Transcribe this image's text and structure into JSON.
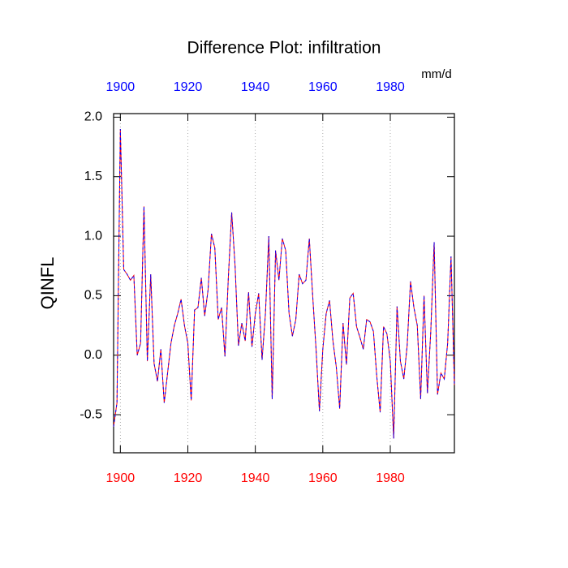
{
  "chart_data": {
    "type": "line",
    "title": "Difference Plot: infiltration",
    "units": "mm/d",
    "y_label": "QINFL",
    "x": [
      1898,
      1899,
      1900,
      1901,
      1902,
      1903,
      1904,
      1905,
      1906,
      1907,
      1908,
      1909,
      1910,
      1911,
      1912,
      1913,
      1914,
      1915,
      1916,
      1917,
      1918,
      1919,
      1920,
      1921,
      1922,
      1923,
      1924,
      1925,
      1926,
      1927,
      1928,
      1929,
      1930,
      1931,
      1932,
      1933,
      1934,
      1935,
      1936,
      1937,
      1938,
      1939,
      1940,
      1941,
      1942,
      1943,
      1944,
      1945,
      1946,
      1947,
      1948,
      1949,
      1950,
      1951,
      1952,
      1953,
      1954,
      1955,
      1956,
      1957,
      1958,
      1959,
      1960,
      1961,
      1962,
      1963,
      1964,
      1965,
      1966,
      1967,
      1968,
      1969,
      1970,
      1971,
      1972,
      1973,
      1974,
      1975,
      1976,
      1977,
      1978,
      1979,
      1980,
      1981,
      1982,
      1983,
      1984,
      1985,
      1986,
      1987,
      1988,
      1989,
      1990,
      1991,
      1992,
      1993,
      1994,
      1995,
      1996,
      1997,
      1998,
      1999
    ],
    "series": [
      {
        "color": "#ff0000",
        "values": [
          -0.6,
          -0.4,
          1.9,
          0.72,
          0.68,
          0.63,
          0.67,
          0.0,
          0.1,
          1.25,
          -0.05,
          0.68,
          -0.07,
          -0.22,
          0.05,
          -0.4,
          -0.15,
          0.1,
          0.25,
          0.35,
          0.47,
          0.25,
          0.1,
          -0.38,
          0.38,
          0.4,
          0.65,
          0.33,
          0.55,
          1.02,
          0.9,
          0.3,
          0.4,
          -0.01,
          0.65,
          1.2,
          0.75,
          0.08,
          0.27,
          0.12,
          0.53,
          0.07,
          0.35,
          0.52,
          -0.04,
          0.35,
          1.0,
          -0.37,
          0.88,
          0.63,
          0.98,
          0.88,
          0.35,
          0.16,
          0.3,
          0.68,
          0.6,
          0.63,
          0.98,
          0.5,
          0.05,
          -0.47,
          0.05,
          0.35,
          0.46,
          0.12,
          -0.1,
          -0.45,
          0.27,
          -0.08,
          0.48,
          0.52,
          0.24,
          0.15,
          0.05,
          0.3,
          0.28,
          0.2,
          -0.18,
          -0.48,
          0.24,
          0.18,
          -0.05,
          -0.7,
          0.41,
          -0.05,
          -0.2,
          0.08,
          0.62,
          0.4,
          0.25,
          -0.37,
          0.5,
          -0.32,
          0.2,
          0.95,
          -0.33,
          -0.15,
          -0.2,
          0.1,
          0.83,
          -0.25
        ]
      },
      {
        "color": "#0000ff",
        "values": [
          -0.6,
          -0.4,
          1.9,
          0.72,
          0.68,
          0.63,
          0.67,
          0.0,
          0.1,
          1.25,
          -0.05,
          0.68,
          -0.07,
          -0.22,
          0.05,
          -0.4,
          -0.15,
          0.1,
          0.25,
          0.35,
          0.47,
          0.25,
          0.1,
          -0.38,
          0.38,
          0.4,
          0.65,
          0.33,
          0.55,
          1.02,
          0.9,
          0.3,
          0.4,
          -0.01,
          0.65,
          1.2,
          0.75,
          0.08,
          0.27,
          0.12,
          0.53,
          0.07,
          0.35,
          0.52,
          -0.04,
          0.35,
          1.0,
          -0.37,
          0.88,
          0.63,
          0.98,
          0.88,
          0.35,
          0.16,
          0.3,
          0.68,
          0.6,
          0.63,
          0.98,
          0.5,
          0.05,
          -0.47,
          0.05,
          0.35,
          0.46,
          0.12,
          -0.1,
          -0.45,
          0.27,
          -0.08,
          0.48,
          0.52,
          0.24,
          0.15,
          0.05,
          0.3,
          0.28,
          0.2,
          -0.18,
          -0.48,
          0.24,
          0.18,
          -0.05,
          -0.7,
          0.41,
          -0.05,
          -0.2,
          0.08,
          0.62,
          0.4,
          0.25,
          -0.37,
          0.5,
          -0.32,
          0.2,
          0.95,
          -0.33,
          -0.15,
          -0.2,
          0.1,
          0.83,
          -0.25
        ]
      }
    ],
    "xlim": [
      1898,
      1999
    ],
    "xticks": [
      1900,
      1920,
      1940,
      1960,
      1980
    ],
    "xtick_label_colors": {
      "bottom": "#ff0000",
      "top": "#0000ff"
    },
    "ylim": [
      -0.82,
      2.03
    ],
    "yticks": [
      {
        "value": -0.5,
        "label": "-0.5"
      },
      {
        "value": 0,
        "label": "0.0"
      },
      0.5,
      {
        "value": 1,
        "label": "1.0"
      },
      1.5,
      {
        "value": 2,
        "label": "2.0"
      }
    ],
    "grid": "x"
  }
}
